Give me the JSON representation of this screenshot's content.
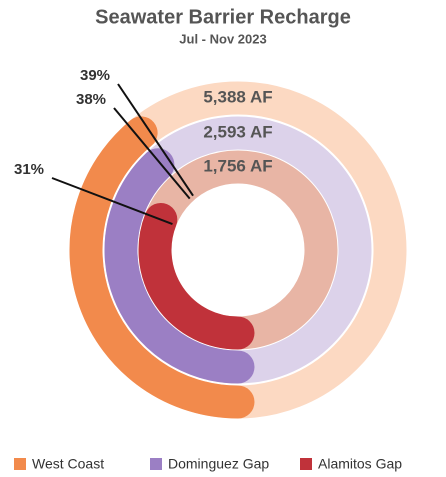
{
  "chart_data": {
    "type": "radial_bar",
    "title": "Seawater Barrier Recharge",
    "subtitle": "Jul - Nov 2023",
    "series": [
      {
        "name": "West Coast",
        "color": "#f28a4c",
        "track_color": "#fcd9c2",
        "value": 39,
        "value_label": "39%",
        "total": 5388,
        "total_label": "5,388 AF"
      },
      {
        "name": "Dominguez Gap",
        "color": "#9b7fc4",
        "track_color": "#dcd2ea",
        "value": 38,
        "value_label": "38%",
        "total": 2593,
        "total_label": "2,593 AF"
      },
      {
        "name": "Alamitos Gap",
        "color": "#c0323a",
        "track_color": "#e8b5a5",
        "value": 31,
        "value_label": "31%",
        "total": 1756,
        "total_label": "1,756 AF"
      }
    ]
  }
}
